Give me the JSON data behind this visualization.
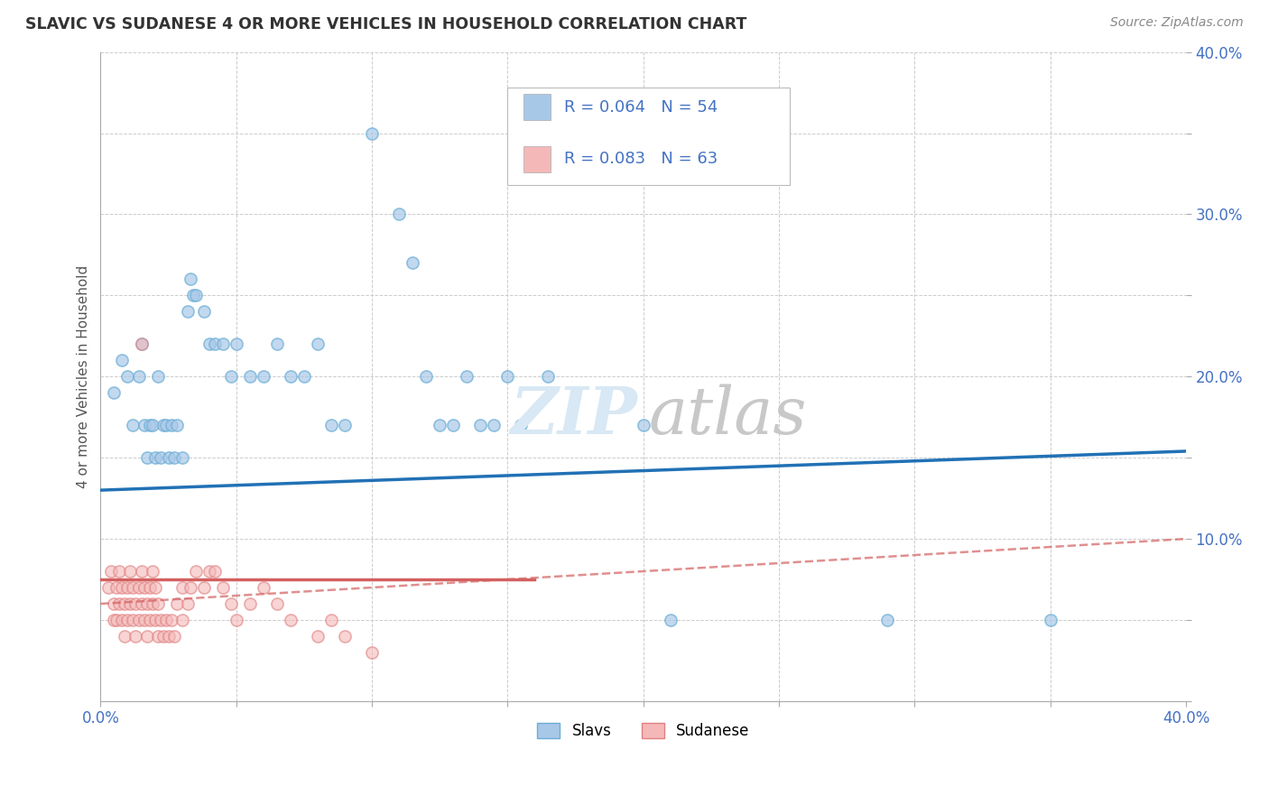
{
  "title": "SLAVIC VS SUDANESE 4 OR MORE VEHICLES IN HOUSEHOLD CORRELATION CHART",
  "source": "Source: ZipAtlas.com",
  "ylabel": "4 or more Vehicles in Household",
  "xlim": [
    0.0,
    0.4
  ],
  "ylim": [
    0.0,
    0.4
  ],
  "x_ticks": [
    0.0,
    0.05,
    0.1,
    0.15,
    0.2,
    0.25,
    0.3,
    0.35,
    0.4
  ],
  "y_ticks": [
    0.0,
    0.05,
    0.1,
    0.15,
    0.2,
    0.25,
    0.3,
    0.35,
    0.4
  ],
  "slavs_color": "#a8c8e8",
  "slavs_edge_color": "#6baed6",
  "sudanese_color": "#f4b8b8",
  "sudanese_edge_color": "#e08080",
  "slavs_R": 0.064,
  "slavs_N": 54,
  "sudanese_R": 0.083,
  "sudanese_N": 63,
  "slavs_line_color": "#2171b5",
  "sudanese_line_color": "#d46060",
  "watermark_zip_color": "#d8e8f4",
  "watermark_atlas_color": "#c8c8c8",
  "legend_slavs_label": "Slavs",
  "legend_sudanese_label": "Sudanese",
  "slavs_points": [
    [
      0.005,
      0.19
    ],
    [
      0.008,
      0.21
    ],
    [
      0.01,
      0.2
    ],
    [
      0.012,
      0.17
    ],
    [
      0.014,
      0.2
    ],
    [
      0.015,
      0.22
    ],
    [
      0.016,
      0.17
    ],
    [
      0.017,
      0.15
    ],
    [
      0.018,
      0.17
    ],
    [
      0.019,
      0.17
    ],
    [
      0.02,
      0.15
    ],
    [
      0.021,
      0.2
    ],
    [
      0.022,
      0.15
    ],
    [
      0.023,
      0.17
    ],
    [
      0.024,
      0.17
    ],
    [
      0.025,
      0.15
    ],
    [
      0.026,
      0.17
    ],
    [
      0.027,
      0.15
    ],
    [
      0.028,
      0.17
    ],
    [
      0.03,
      0.15
    ],
    [
      0.032,
      0.24
    ],
    [
      0.033,
      0.26
    ],
    [
      0.034,
      0.25
    ],
    [
      0.035,
      0.25
    ],
    [
      0.038,
      0.24
    ],
    [
      0.04,
      0.22
    ],
    [
      0.042,
      0.22
    ],
    [
      0.045,
      0.22
    ],
    [
      0.048,
      0.2
    ],
    [
      0.05,
      0.22
    ],
    [
      0.055,
      0.2
    ],
    [
      0.06,
      0.2
    ],
    [
      0.065,
      0.22
    ],
    [
      0.07,
      0.2
    ],
    [
      0.075,
      0.2
    ],
    [
      0.08,
      0.22
    ],
    [
      0.085,
      0.17
    ],
    [
      0.09,
      0.17
    ],
    [
      0.1,
      0.35
    ],
    [
      0.11,
      0.3
    ],
    [
      0.115,
      0.27
    ],
    [
      0.12,
      0.2
    ],
    [
      0.125,
      0.17
    ],
    [
      0.13,
      0.17
    ],
    [
      0.135,
      0.2
    ],
    [
      0.14,
      0.17
    ],
    [
      0.145,
      0.17
    ],
    [
      0.15,
      0.2
    ],
    [
      0.155,
      0.17
    ],
    [
      0.165,
      0.2
    ],
    [
      0.2,
      0.17
    ],
    [
      0.21,
      0.05
    ],
    [
      0.29,
      0.05
    ],
    [
      0.35,
      0.05
    ]
  ],
  "sudanese_points": [
    [
      0.003,
      0.07
    ],
    [
      0.004,
      0.08
    ],
    [
      0.005,
      0.06
    ],
    [
      0.005,
      0.05
    ],
    [
      0.006,
      0.07
    ],
    [
      0.006,
      0.05
    ],
    [
      0.007,
      0.08
    ],
    [
      0.007,
      0.06
    ],
    [
      0.008,
      0.07
    ],
    [
      0.008,
      0.05
    ],
    [
      0.009,
      0.06
    ],
    [
      0.009,
      0.04
    ],
    [
      0.01,
      0.07
    ],
    [
      0.01,
      0.05
    ],
    [
      0.011,
      0.08
    ],
    [
      0.011,
      0.06
    ],
    [
      0.012,
      0.07
    ],
    [
      0.012,
      0.05
    ],
    [
      0.013,
      0.06
    ],
    [
      0.013,
      0.04
    ],
    [
      0.014,
      0.07
    ],
    [
      0.014,
      0.05
    ],
    [
      0.015,
      0.22
    ],
    [
      0.015,
      0.08
    ],
    [
      0.015,
      0.06
    ],
    [
      0.016,
      0.07
    ],
    [
      0.016,
      0.05
    ],
    [
      0.017,
      0.06
    ],
    [
      0.017,
      0.04
    ],
    [
      0.018,
      0.07
    ],
    [
      0.018,
      0.05
    ],
    [
      0.019,
      0.08
    ],
    [
      0.019,
      0.06
    ],
    [
      0.02,
      0.07
    ],
    [
      0.02,
      0.05
    ],
    [
      0.021,
      0.06
    ],
    [
      0.021,
      0.04
    ],
    [
      0.022,
      0.05
    ],
    [
      0.023,
      0.04
    ],
    [
      0.024,
      0.05
    ],
    [
      0.025,
      0.04
    ],
    [
      0.026,
      0.05
    ],
    [
      0.027,
      0.04
    ],
    [
      0.028,
      0.06
    ],
    [
      0.03,
      0.07
    ],
    [
      0.03,
      0.05
    ],
    [
      0.032,
      0.06
    ],
    [
      0.033,
      0.07
    ],
    [
      0.035,
      0.08
    ],
    [
      0.038,
      0.07
    ],
    [
      0.04,
      0.08
    ],
    [
      0.042,
      0.08
    ],
    [
      0.045,
      0.07
    ],
    [
      0.048,
      0.06
    ],
    [
      0.05,
      0.05
    ],
    [
      0.055,
      0.06
    ],
    [
      0.06,
      0.07
    ],
    [
      0.065,
      0.06
    ],
    [
      0.07,
      0.05
    ],
    [
      0.08,
      0.04
    ],
    [
      0.085,
      0.05
    ],
    [
      0.09,
      0.04
    ],
    [
      0.1,
      0.03
    ]
  ],
  "background_color": "#ffffff",
  "grid_color": "#cccccc",
  "title_color": "#333333",
  "axis_label_color": "#555555",
  "tick_label_color": "#4472c4",
  "legend_R_N_color": "#4472c4",
  "slavs_line_intercept": 0.13,
  "slavs_line_slope": 0.06,
  "sudanese_solid_intercept": 0.075,
  "sudanese_solid_slope": 0.0,
  "sudanese_dashed_intercept": 0.06,
  "sudanese_dashed_slope": 0.1
}
